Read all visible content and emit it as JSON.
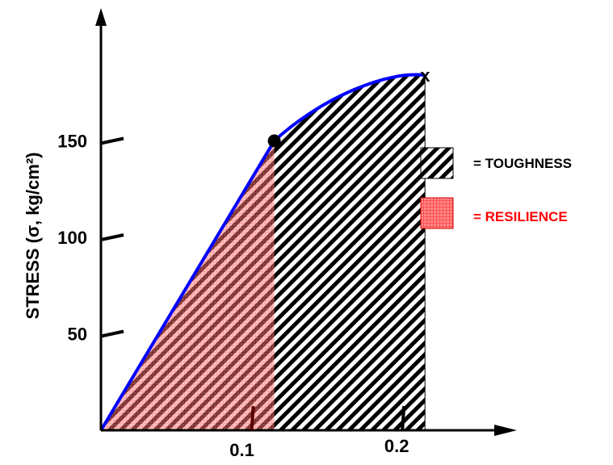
{
  "chart_data": {
    "type": "area",
    "xlabel": "",
    "ylabel": "STRESS (σ, kg/cm²)",
    "y_ticks": [
      {
        "value": 50,
        "label": "50"
      },
      {
        "value": 100,
        "label": "100"
      },
      {
        "value": 150,
        "label": "150"
      }
    ],
    "x_ticks": [
      {
        "value": 0.1,
        "label": "0.1"
      },
      {
        "value": 0.2,
        "label": "0.2"
      }
    ],
    "curve": {
      "elastic_limit": {
        "x": 0.115,
        "y": 150
      },
      "fracture": {
        "x": 0.215,
        "y": 184
      },
      "fracture_marker": "x"
    },
    "legend": [
      {
        "label": "= TOUGHNESS",
        "pattern": "black-hatch",
        "color": "#000000"
      },
      {
        "label": "= RESILIENCE",
        "pattern": "red-grid",
        "color": "#ff0000"
      }
    ],
    "colors": {
      "curve": "#0000ff",
      "resilience_fill": "#ff8080",
      "toughness_hatch": "#000000"
    }
  }
}
